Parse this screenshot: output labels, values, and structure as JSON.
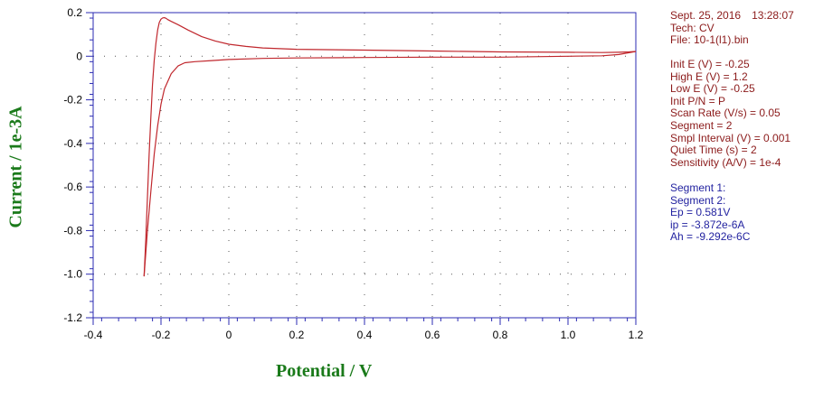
{
  "colors": {
    "axis": "#2b2bb3",
    "curve": "#c0272d",
    "title_green": "#1a7a1a",
    "info_red": "#8b1a1a",
    "info_blue": "#2323a0",
    "grid_dots": "#555555"
  },
  "info": {
    "date": "Sept. 25, 2016",
    "time": "13:28:07",
    "tech": "Tech: CV",
    "file": "File: 10-1(l1).bin",
    "params": [
      "Init E (V) = -0.25",
      "High E (V) = 1.2",
      "Low E (V) = -0.25",
      "Init P/N = P",
      "Scan Rate (V/s) = 0.05",
      "Segment = 2",
      "Smpl Interval (V) = 0.001",
      "Quiet Time (s) = 2",
      "Sensitivity (A/V) = 1e-4"
    ],
    "results": [
      "Segment 1:",
      "Segment 2:",
      "Ep = 0.581V",
      "ip = -3.872e-6A",
      "Ah = -9.292e-6C"
    ]
  },
  "chart_data": {
    "type": "line",
    "xlabel": "Potential / V",
    "ylabel": "Current / 1e-3A",
    "xlim": [
      -0.4,
      1.2
    ],
    "ylim": [
      -1.2,
      0.2
    ],
    "xticks": [
      "-0.4",
      "-0.2",
      "0",
      "0.2",
      "0.4",
      "0.6",
      "0.8",
      "1.0",
      "1.2"
    ],
    "yticks": [
      "0.2",
      "0",
      "-0.2",
      "-0.4",
      "-0.6",
      "-0.8",
      "-1.0",
      "-1.2"
    ],
    "grid": "dotted",
    "series": [
      {
        "x": [
          -0.25,
          -0.245,
          -0.24,
          -0.235,
          -0.23,
          -0.225,
          -0.22,
          -0.215,
          -0.21,
          -0.205,
          -0.2,
          -0.195,
          -0.19,
          -0.185,
          -0.18,
          -0.17,
          -0.15,
          -0.12,
          -0.08,
          -0.04,
          0.0,
          0.05,
          0.1,
          0.2,
          0.4,
          0.6,
          0.8,
          1.0,
          1.1,
          1.15,
          1.18,
          1.2
        ],
        "y": [
          -1.01,
          -0.85,
          -0.65,
          -0.45,
          -0.28,
          -0.13,
          -0.02,
          0.06,
          0.12,
          0.155,
          0.17,
          0.176,
          0.177,
          0.174,
          0.168,
          0.16,
          0.145,
          0.12,
          0.09,
          0.07,
          0.055,
          0.045,
          0.038,
          0.032,
          0.028,
          0.024,
          0.02,
          0.018,
          0.017,
          0.018,
          0.02,
          0.022
        ]
      },
      {
        "x": [
          1.2,
          1.15,
          1.1,
          1.0,
          0.8,
          0.6,
          0.4,
          0.2,
          0.1,
          0.0,
          -0.05,
          -0.1,
          -0.13,
          -0.15,
          -0.17,
          -0.19,
          -0.2,
          -0.21,
          -0.22,
          -0.23,
          -0.24,
          -0.25
        ],
        "y": [
          0.022,
          0.008,
          0.002,
          0.0,
          -0.004,
          -0.004,
          -0.006,
          -0.008,
          -0.01,
          -0.015,
          -0.02,
          -0.025,
          -0.03,
          -0.045,
          -0.08,
          -0.15,
          -0.22,
          -0.32,
          -0.45,
          -0.62,
          -0.8,
          -1.01
        ]
      }
    ]
  }
}
